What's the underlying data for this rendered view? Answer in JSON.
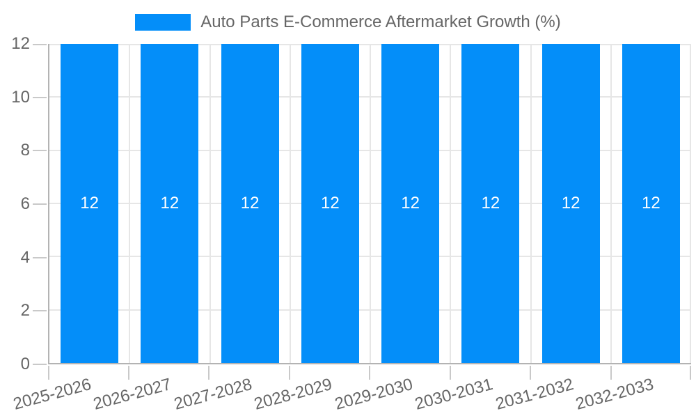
{
  "chart_data": {
    "type": "bar",
    "title": "Auto Parts E-Commerce Aftermarket Growth (%)",
    "legend": {
      "position": "top",
      "label": "Auto Parts E-Commerce Aftermarket Growth (%)",
      "swatch_color": "#048ef9"
    },
    "categories": [
      "2025-2026",
      "2026-2027",
      "2027-2028",
      "2028-2029",
      "2029-2030",
      "2030-2031",
      "2031-2032",
      "2032-2033"
    ],
    "values": [
      12,
      12,
      12,
      12,
      12,
      12,
      12,
      12
    ],
    "xlabel": "",
    "ylabel": "",
    "ylim": [
      0,
      12
    ],
    "yticks": [
      0,
      2,
      4,
      6,
      8,
      10,
      12
    ],
    "grid": "on",
    "x_label_rotation_deg": -15,
    "colors": {
      "bar": "#048ef9",
      "bar_label_text": "#ffffff",
      "axis_text": "#666666",
      "gridline": "#e6e6e6",
      "axis_line": "#b3b3b3"
    }
  }
}
